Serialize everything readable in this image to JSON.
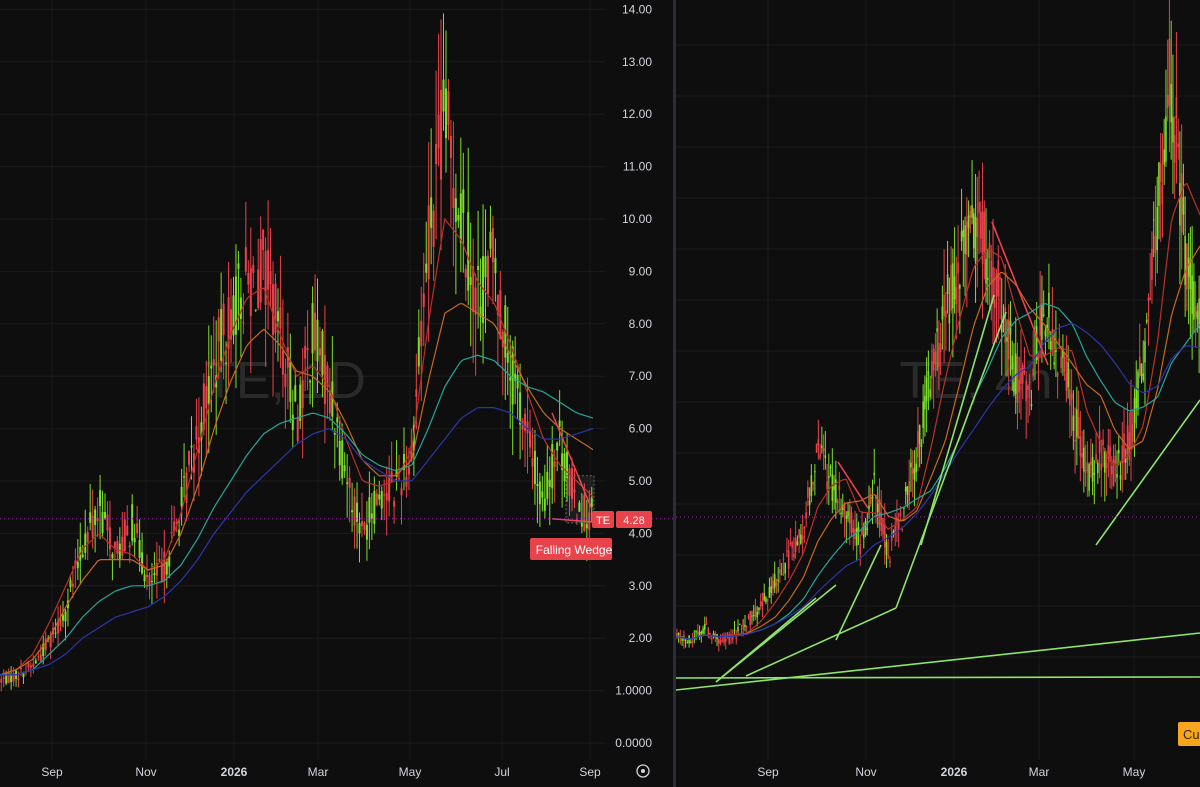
{
  "charts": {
    "left": {
      "watermark": "TE, 1D",
      "ticker_tag": "TE",
      "last_price": "4.28",
      "pattern_label": "Falling Wedge",
      "colors": {
        "up": "#7ee02b",
        "down": "#e8424b",
        "grid": "#1b1b1b",
        "text": "#d1d4dc",
        "ema_short": "#b83226",
        "ema_mid": "#c8691d",
        "ema_long": "#26a69a",
        "sma": "#2b36a8",
        "tag_bg": "#e8424b",
        "price_line": "#9c27b0"
      }
    },
    "right": {
      "watermark": "TE, 4h",
      "badge": "Cu",
      "colors": {
        "trendline": "#8fe36a",
        "wedge": "#f0424b",
        "badge_bg": "#f7a51d"
      }
    }
  },
  "chart_data": [
    {
      "type": "candlestick",
      "title": "TE, 1D",
      "y_ticks": [
        "14.00",
        "13.00",
        "12.00",
        "11.00",
        "10.00",
        "9.00",
        "8.00",
        "7.00",
        "6.00",
        "5.00",
        "4.00",
        "3.00",
        "2.00",
        "1.0000",
        "0.0000"
      ],
      "x_ticks": [
        "Sep",
        "Nov",
        "2026",
        "Mar",
        "May",
        "Jul",
        "Sep"
      ],
      "ylim": [
        0,
        14
      ],
      "last_price": 4.28,
      "annotation": "Falling Wedge",
      "close_path": [
        1.2,
        1.3,
        1.5,
        2.0,
        2.6,
        3.8,
        4.5,
        3.6,
        4.2,
        3.0,
        3.4,
        4.5,
        6.0,
        7.2,
        8.2,
        8.8,
        9.0,
        7.8,
        6.2,
        7.8,
        6.8,
        5.2,
        4.0,
        4.8,
        4.9,
        5.5,
        9.5,
        12.0,
        10.2,
        8.5,
        9.2,
        7.2,
        6.0,
        4.5,
        5.8,
        4.6,
        4.3
      ],
      "emas": [
        {
          "name": "short",
          "values": [
            1.3,
            1.4,
            1.7,
            2.3,
            3.0,
            3.7,
            4.0,
            3.7,
            3.6,
            3.3,
            3.5,
            4.4,
            5.6,
            6.8,
            7.8,
            8.5,
            8.7,
            7.8,
            7.0,
            7.2,
            6.8,
            5.8,
            5.0,
            4.9,
            5.0,
            5.6,
            8.0,
            10.0,
            9.6,
            8.8,
            8.4,
            7.6,
            6.7,
            5.8,
            5.3,
            5.0,
            4.7
          ]
        },
        {
          "name": "mid",
          "values": [
            1.3,
            1.4,
            1.6,
            2.0,
            2.6,
            3.1,
            3.5,
            3.5,
            3.5,
            3.3,
            3.4,
            4.0,
            4.9,
            6.0,
            6.9,
            7.6,
            7.9,
            7.6,
            7.1,
            7.0,
            6.7,
            6.1,
            5.4,
            5.1,
            5.1,
            5.4,
            6.9,
            8.2,
            8.4,
            8.2,
            8.0,
            7.4,
            6.8,
            6.3,
            6.0,
            5.8,
            5.6
          ]
        },
        {
          "name": "long",
          "values": [
            1.3,
            1.3,
            1.4,
            1.7,
            2.0,
            2.4,
            2.7,
            2.9,
            3.0,
            3.0,
            3.1,
            3.4,
            3.9,
            4.5,
            5.0,
            5.5,
            5.9,
            6.1,
            6.2,
            6.3,
            6.2,
            5.9,
            5.5,
            5.3,
            5.2,
            5.3,
            6.0,
            6.8,
            7.3,
            7.4,
            7.3,
            7.0,
            6.8,
            6.7,
            6.5,
            6.3,
            6.2
          ]
        },
        {
          "name": "sma",
          "values": [
            1.3,
            1.3,
            1.4,
            1.5,
            1.7,
            2.0,
            2.2,
            2.4,
            2.5,
            2.6,
            2.8,
            3.1,
            3.5,
            4.0,
            4.4,
            4.8,
            5.1,
            5.4,
            5.7,
            5.9,
            6.0,
            5.8,
            5.4,
            5.2,
            5.0,
            5.0,
            5.4,
            5.8,
            6.2,
            6.4,
            6.4,
            6.3,
            6.0,
            5.8,
            5.8,
            5.9,
            6.0
          ]
        }
      ]
    },
    {
      "type": "candlestick",
      "title": "TE, 4h",
      "x_ticks": [
        "Sep",
        "Nov",
        "2026",
        "Mar",
        "May"
      ],
      "close_path": [
        1.4,
        1.3,
        1.6,
        1.3,
        1.4,
        1.7,
        2.0,
        2.5,
        3.0,
        3.6,
        5.2,
        4.3,
        4.0,
        3.2,
        4.3,
        3.0,
        3.8,
        5.0,
        6.5,
        7.8,
        8.5,
        9.6,
        8.9,
        8.0,
        6.5,
        6.2,
        8.0,
        7.0,
        6.0,
        4.5,
        5.1,
        4.6,
        5.2,
        6.8,
        9.5,
        12.5,
        9.0,
        7.5
      ]
    }
  ]
}
